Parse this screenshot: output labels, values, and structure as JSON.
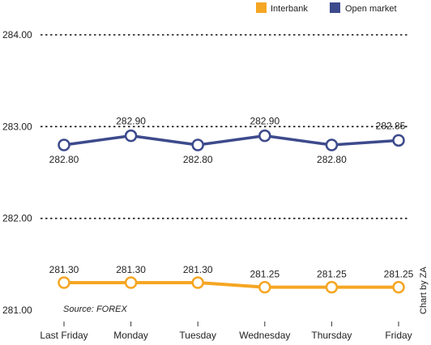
{
  "chart_data": {
    "type": "line",
    "categories": [
      "Last Friday",
      "Monday",
      "Tuesday",
      "Wednesday",
      "Thursday",
      "Friday"
    ],
    "series": [
      {
        "name": "Interbank",
        "color": "#F5A623",
        "values": [
          281.3,
          281.3,
          281.3,
          281.25,
          281.25,
          281.25
        ],
        "labels": [
          "281.30",
          "281.30",
          "281.30",
          "281.25",
          "281.25",
          "281.25"
        ]
      },
      {
        "name": "Open market",
        "color": "#3D4A8C",
        "values": [
          282.8,
          282.9,
          282.8,
          282.9,
          282.8,
          282.85
        ],
        "labels": [
          "282.80",
          "282.90",
          "282.80",
          "282.90",
          "282.80",
          "282.85"
        ]
      }
    ],
    "yticks": [
      "281.00",
      "282.00",
      "283.00",
      "284.00"
    ],
    "ylim": [
      281.0,
      284.0
    ],
    "grid": true,
    "legend_position": "top-right",
    "source": "Source: FOREX",
    "credit": "Chart by ZA"
  }
}
